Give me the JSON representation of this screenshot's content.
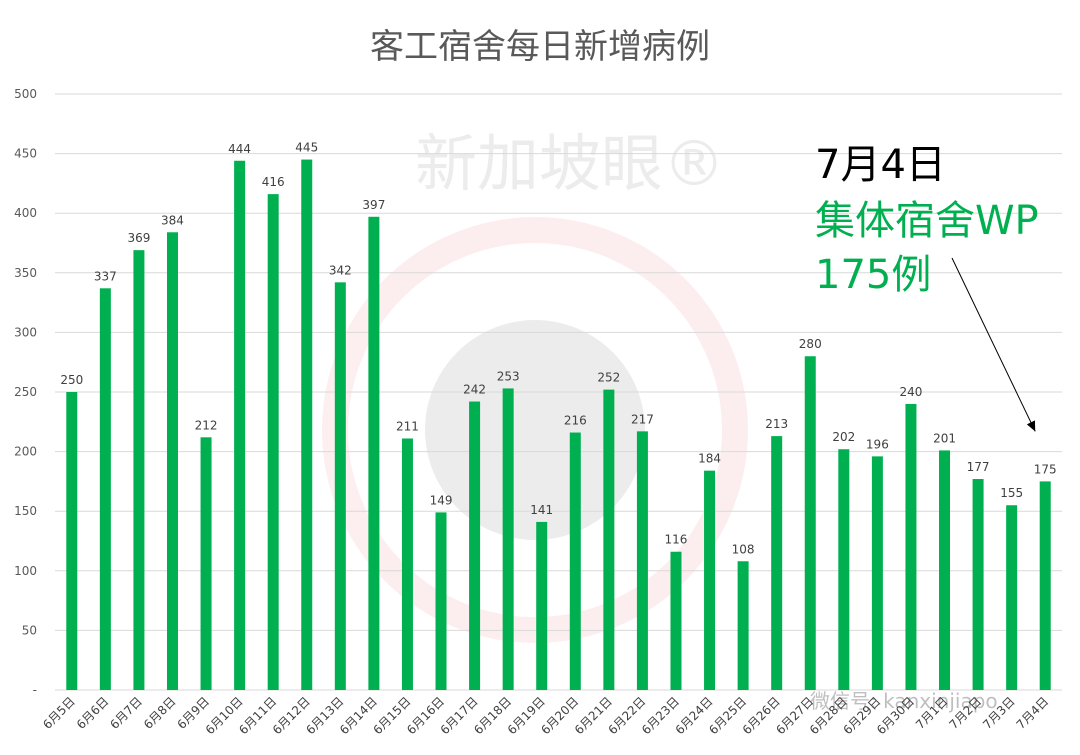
{
  "chart_data": {
    "type": "bar",
    "title": "客工宿舍每日新增病例",
    "xlabel": "",
    "ylabel": "",
    "ylim": [
      0,
      500
    ],
    "yticks": [
      "-",
      "50",
      "100",
      "150",
      "200",
      "250",
      "300",
      "350",
      "400",
      "450",
      "500"
    ],
    "grid": true,
    "legend": "none",
    "categories": [
      "6月5日",
      "6月6日",
      "6月7日",
      "6月8日",
      "6月9日",
      "6月10日",
      "6月11日",
      "6月12日",
      "6月13日",
      "6月14日",
      "6月15日",
      "6月16日",
      "6月17日",
      "6月18日",
      "6月19日",
      "6月20日",
      "6月21日",
      "6月22日",
      "6月23日",
      "6月24日",
      "6月25日",
      "6月26日",
      "6月27日",
      "6月28日",
      "6月29日",
      "6月30日",
      "7月1日",
      "7月2日",
      "7月3日",
      "7月4日"
    ],
    "values": [
      250,
      337,
      369,
      384,
      212,
      444,
      416,
      445,
      342,
      397,
      211,
      149,
      242,
      253,
      141,
      216,
      252,
      217,
      116,
      184,
      108,
      213,
      280,
      202,
      196,
      240,
      201,
      177,
      155,
      175
    ],
    "bar_color": "#00b050",
    "annotation": {
      "date": "7月4日",
      "line1": "集体宿舍WP",
      "line2": "175例",
      "target": "7月4日"
    }
  },
  "watermark": {
    "text": "新加坡眼®",
    "wechat": "微信号: kanxinjiapo"
  }
}
